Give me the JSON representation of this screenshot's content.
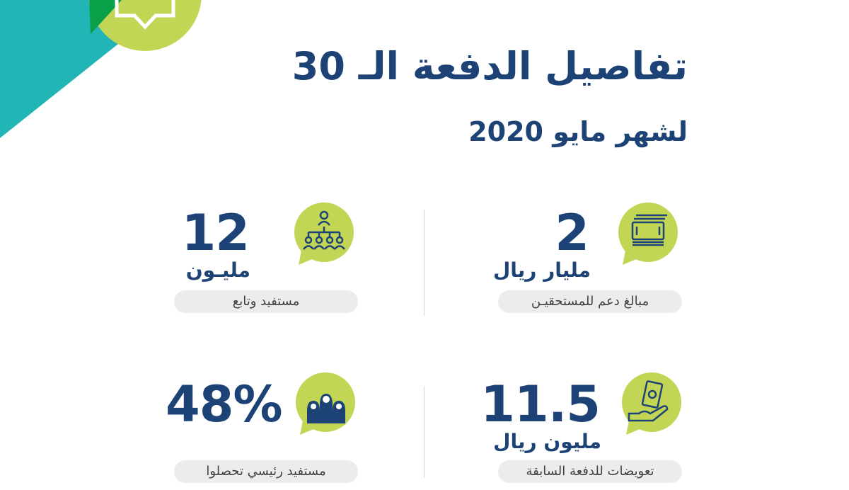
{
  "header": {
    "title": "تفاصيل الدفعة الـ 30",
    "subtitle": "لشهر مايو 2020"
  },
  "stats": [
    {
      "value": "2",
      "unit": "مليار ريال",
      "caption": "مبالغ دعم للمستحقيـن",
      "icon": "money-stack-icon"
    },
    {
      "value": "12",
      "unit": "مليـون",
      "caption": "مستفيد وتابع",
      "icon": "org-people-icon"
    },
    {
      "value": "11.5",
      "unit": "مليون ريال",
      "caption": "تعويضات للدفعة السابقة",
      "icon": "hand-cash-icon"
    },
    {
      "value": "48%",
      "unit": "",
      "caption": "مستفيد رئيسي تحصلوا",
      "icon": "family-icon"
    }
  ],
  "colors": {
    "navy": "#1d4275",
    "lime": "#c3d555",
    "teal": "#21b5b5",
    "green": "#0aa04a",
    "pill": "#ececec"
  }
}
